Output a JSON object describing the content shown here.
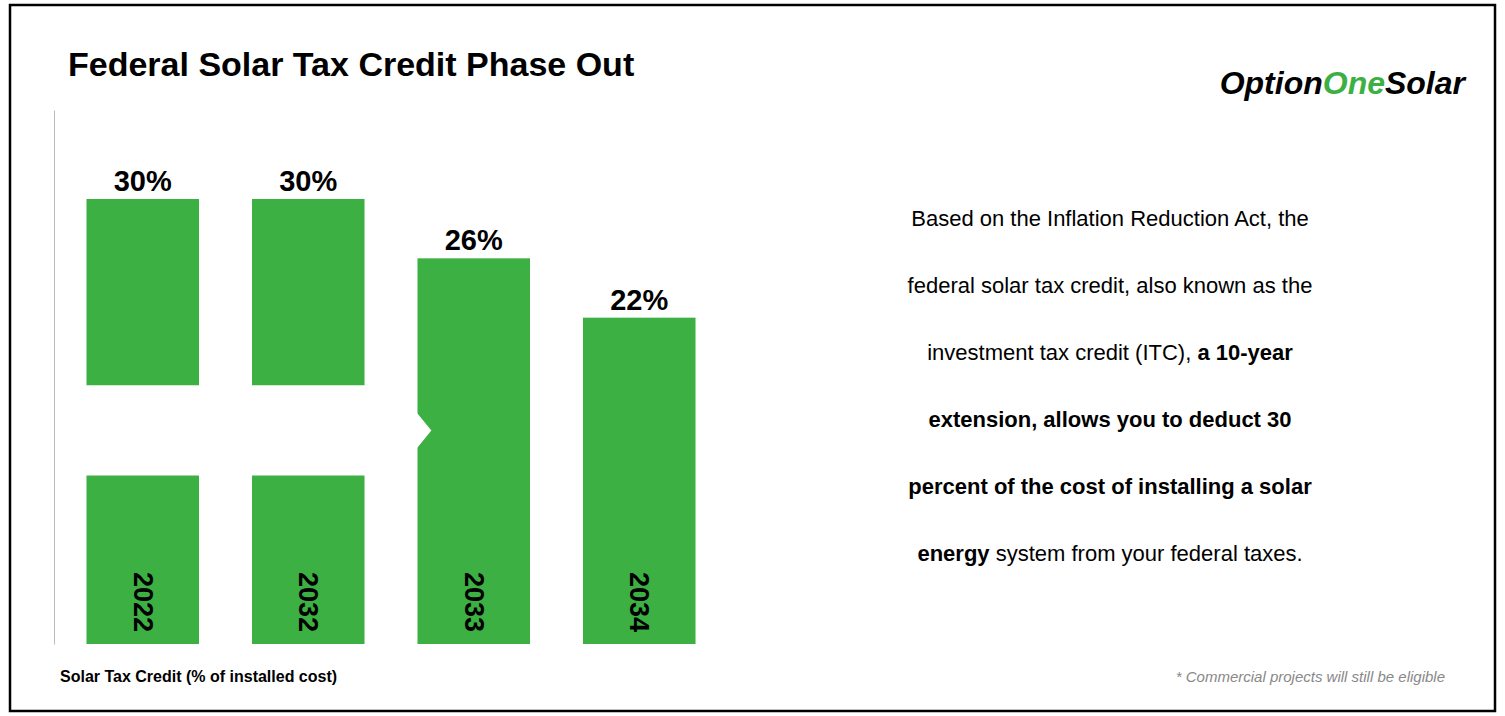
{
  "chart_data": {
    "type": "bar",
    "title": "Federal Solar Tax Credit Phase Out",
    "categories": [
      "2022",
      "2032",
      "2033",
      "2034"
    ],
    "values": [
      30,
      30,
      26,
      22
    ],
    "value_labels": [
      "30%",
      "30%",
      "26%",
      "22%"
    ],
    "data_labels": true,
    "color": "#3cb043",
    "ylim": [
      0,
      36
    ],
    "tick_labels": "x",
    "xlabel": "Solar Tax Credit (% of installed cost)",
    "annotations": {
      "logo": [
        {
          "text": "Option",
          "color": "#000000"
        },
        {
          "text": "One",
          "color": "#3cb043"
        },
        {
          "text": "Solar",
          "color": "#000000"
        }
      ],
      "body": [
        [
          {
            "style": "normal",
            "text": "Based on the Inflation Reduction Act, the"
          }
        ],
        [
          {
            "style": "normal",
            "text": "federal solar tax credit, also known as the"
          }
        ],
        [
          {
            "style": "normal",
            "text": "investment tax credit (ITC), "
          },
          {
            "style": "bold",
            "text": "a 10-year"
          }
        ],
        [
          {
            "style": "bold",
            "text": "extension, allows you to deduct 30"
          }
        ],
        [
          {
            "style": "bold",
            "text": "percent of the cost of installing a solar"
          }
        ],
        [
          {
            "style": "bold",
            "text": "energy"
          },
          {
            "style": "normal",
            "text": " system from your federal taxes."
          }
        ]
      ],
      "footnote": "* Commercial projects will still be eligible"
    }
  }
}
